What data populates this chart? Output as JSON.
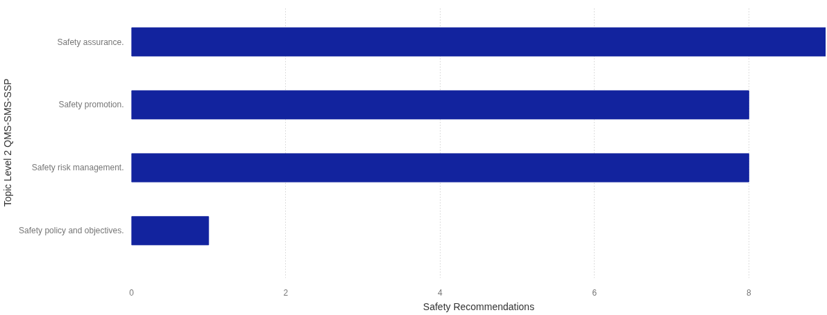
{
  "chart_data": {
    "type": "bar",
    "orientation": "horizontal",
    "xlabel": "Safety Recommendations",
    "ylabel": "Topic Level 2 QMS-SMS-SSP",
    "categories": [
      "Safety assurance.",
      "Safety promotion.",
      "Safety risk management.",
      "Safety policy and objectives."
    ],
    "values": [
      9,
      8,
      8,
      1
    ],
    "color": "#12239e",
    "xlim": [
      0,
      9
    ],
    "xticks": [
      0,
      2,
      4,
      6,
      8
    ],
    "grid": "x"
  }
}
